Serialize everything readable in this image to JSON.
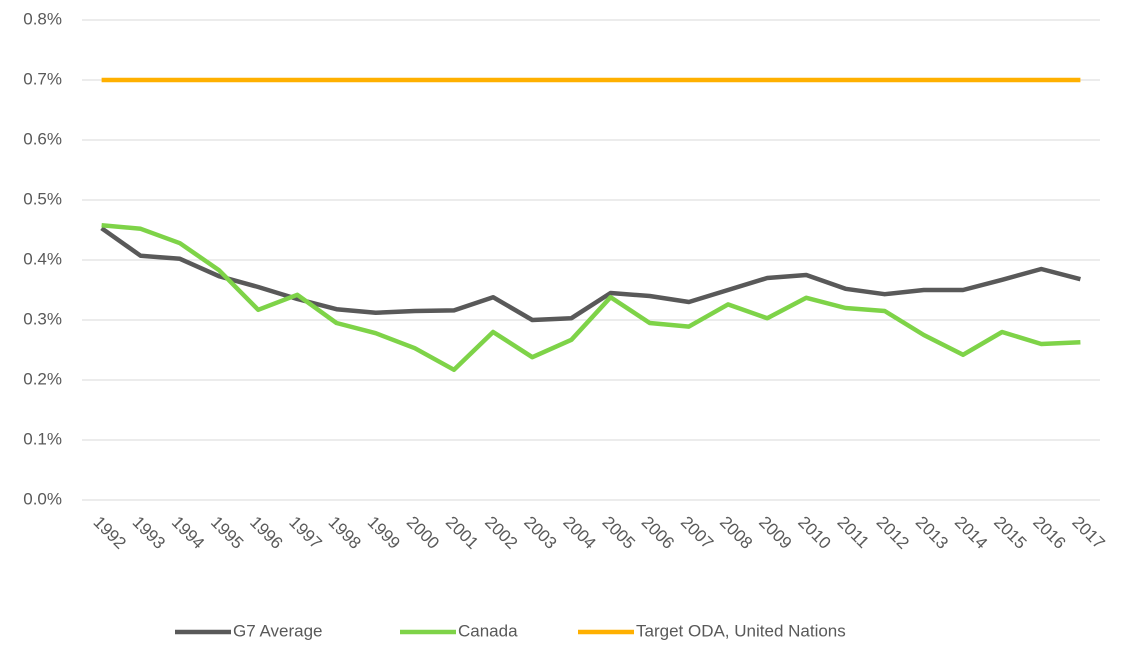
{
  "chart_data": {
    "type": "line",
    "categories": [
      "1992",
      "1993",
      "1994",
      "1995",
      "1996",
      "1997",
      "1998",
      "1999",
      "2000",
      "2001",
      "2002",
      "2003",
      "2004",
      "2005",
      "2006",
      "2007",
      "2008",
      "2009",
      "2010",
      "2011",
      "2012",
      "2013",
      "2014",
      "2015",
      "2016",
      "2017"
    ],
    "series": [
      {
        "name": "G7 Average",
        "color": "#595959",
        "values": [
          0.453,
          0.407,
          0.402,
          0.373,
          0.355,
          0.335,
          0.318,
          0.312,
          0.315,
          0.316,
          0.338,
          0.3,
          0.303,
          0.345,
          0.34,
          0.33,
          0.35,
          0.37,
          0.375,
          0.352,
          0.343,
          0.35,
          0.35,
          0.367,
          0.385,
          0.368
        ]
      },
      {
        "name": "Canada",
        "color": "#7ed348",
        "values": [
          0.458,
          0.452,
          0.428,
          0.383,
          0.317,
          0.342,
          0.295,
          0.278,
          0.253,
          0.217,
          0.28,
          0.238,
          0.267,
          0.338,
          0.295,
          0.289,
          0.326,
          0.303,
          0.337,
          0.32,
          0.315,
          0.275,
          0.242,
          0.28,
          0.26,
          0.263
        ]
      },
      {
        "name": "Target ODA, United Nations",
        "color": "#ffb000",
        "values": [
          0.7,
          0.7,
          0.7,
          0.7,
          0.7,
          0.7,
          0.7,
          0.7,
          0.7,
          0.7,
          0.7,
          0.7,
          0.7,
          0.7,
          0.7,
          0.7,
          0.7,
          0.7,
          0.7,
          0.7,
          0.7,
          0.7,
          0.7,
          0.7,
          0.7,
          0.7
        ]
      }
    ],
    "ylim": [
      0,
      0.8
    ],
    "yticks": [
      {
        "value": 0,
        "label": "0.0%"
      },
      {
        "value": 0.1,
        "label": "0.1%"
      },
      {
        "value": 0.2,
        "label": "0.2%"
      },
      {
        "value": 0.3,
        "label": "0.3%"
      },
      {
        "value": 0.4,
        "label": "0.4%"
      },
      {
        "value": 0.5,
        "label": "0.5%"
      },
      {
        "value": 0.6,
        "label": "0.6%"
      },
      {
        "value": 0.7,
        "label": "0.7%"
      },
      {
        "value": 0.8,
        "label": "0.8%"
      }
    ],
    "grid": true,
    "legend": "bottom"
  }
}
